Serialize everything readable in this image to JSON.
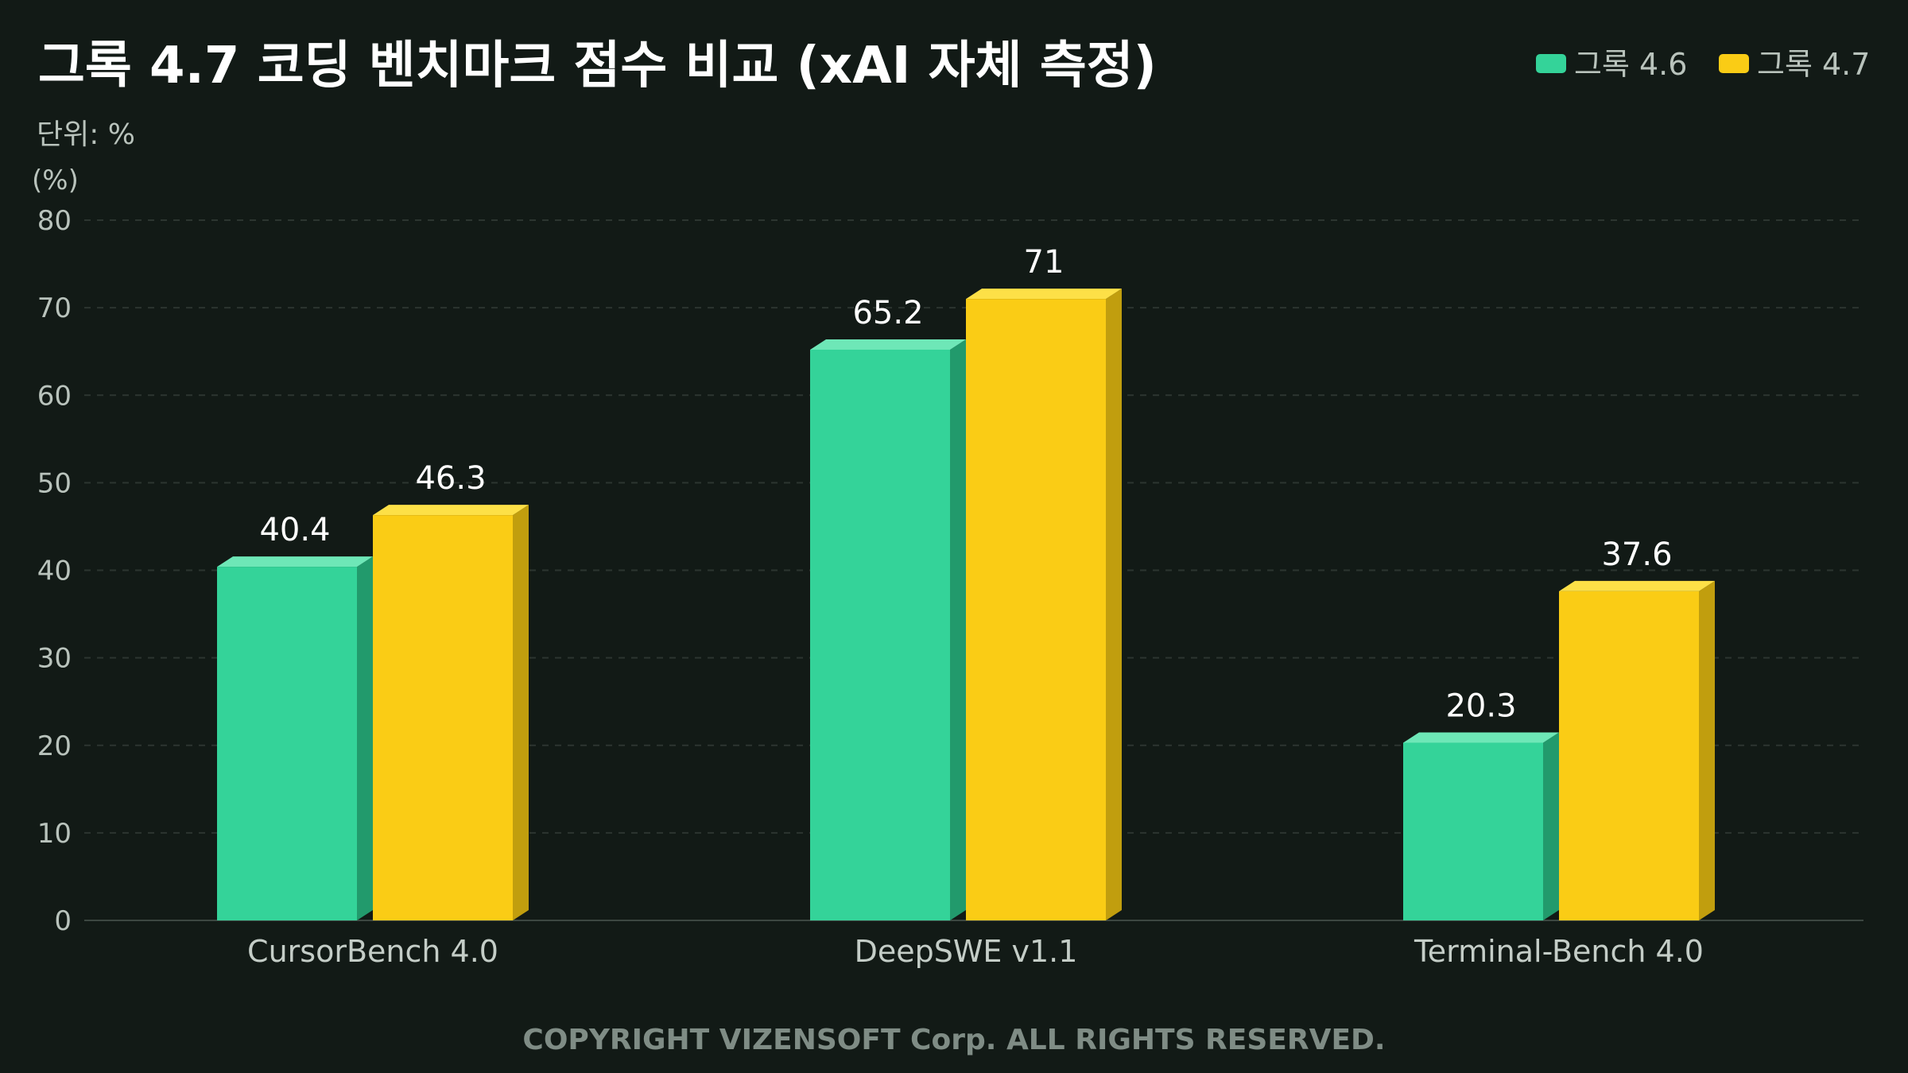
{
  "chart_data": {
    "type": "bar",
    "title": "그록 4.7 코딩 벤치마크 점수 비교 (xAI 자체 측정)",
    "subtitle": "단위: %",
    "ylabel": "(%)",
    "categories": [
      "CursorBench 4.0",
      "DeepSWE v1.1",
      "Terminal-Bench 4.0"
    ],
    "series": [
      {
        "name": "그록 4.6",
        "values": [
          40.4,
          65.2,
          20.3
        ],
        "labels": [
          "40.4",
          "65.2",
          "20.3"
        ],
        "color": "#34d399",
        "top": "#6ee7b7",
        "side": "#229a6c"
      },
      {
        "name": "그록 4.7",
        "values": [
          46.3,
          71,
          37.6
        ],
        "labels": [
          "46.3",
          "71",
          "37.6"
        ],
        "color": "#facc15",
        "top": "#fde047",
        "side": "#c19e0e"
      }
    ],
    "ylim": [
      0,
      80
    ],
    "yticks": [
      0,
      10,
      20,
      30,
      40,
      50,
      60,
      70,
      80
    ],
    "ytick_labels": [
      "0",
      "10",
      "20",
      "30",
      "40",
      "50",
      "60",
      "70",
      "80"
    ],
    "grid": true,
    "legend_position": "top-right"
  },
  "footer": "COPYRIGHT VIZENSOFT Corp. ALL RIGHTS RESERVED.",
  "colors": {
    "background": "#121a16",
    "grid": "#2c3530",
    "axis": "#3c4741"
  }
}
